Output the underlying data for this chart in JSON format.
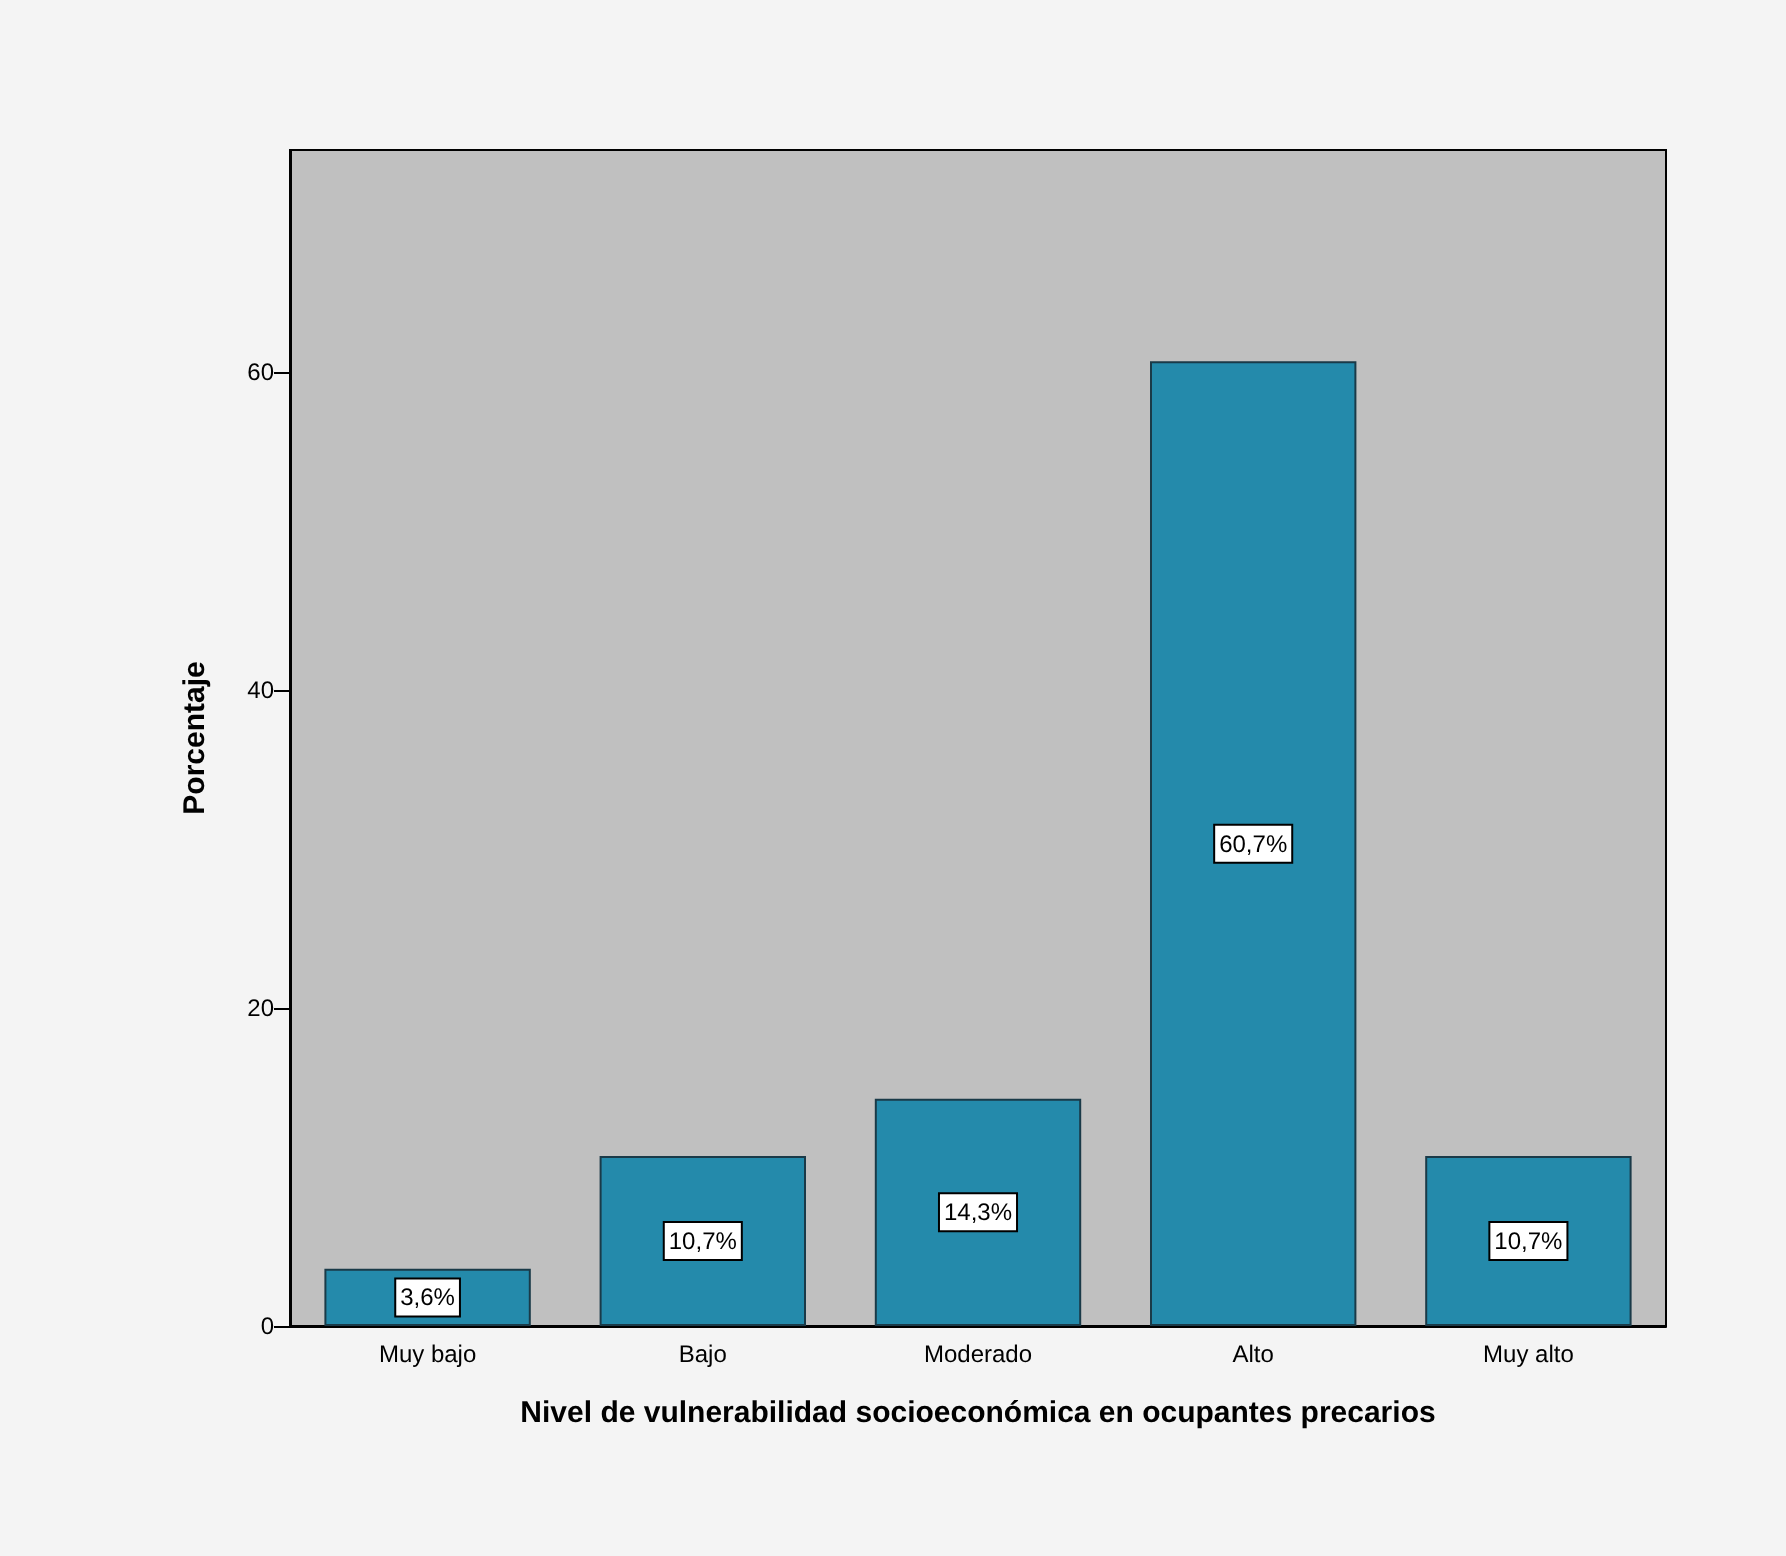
{
  "chart_data": {
    "type": "bar",
    "xlabel": "Nivel de vulnerabilidad socioeconómica en ocupantes precarios",
    "ylabel": "Porcentaje",
    "categories": [
      "Muy bajo",
      "Bajo",
      "Moderado",
      "Alto",
      "Muy alto"
    ],
    "values": [
      3.6,
      10.7,
      14.3,
      60.7,
      10.7
    ],
    "value_labels": [
      "3,6%",
      "10,7%",
      "14,3%",
      "60,7%",
      "10,7%"
    ],
    "color": "#248aab",
    "ylim": [
      0,
      74
    ],
    "yticks": [
      0,
      20,
      40,
      60
    ]
  }
}
